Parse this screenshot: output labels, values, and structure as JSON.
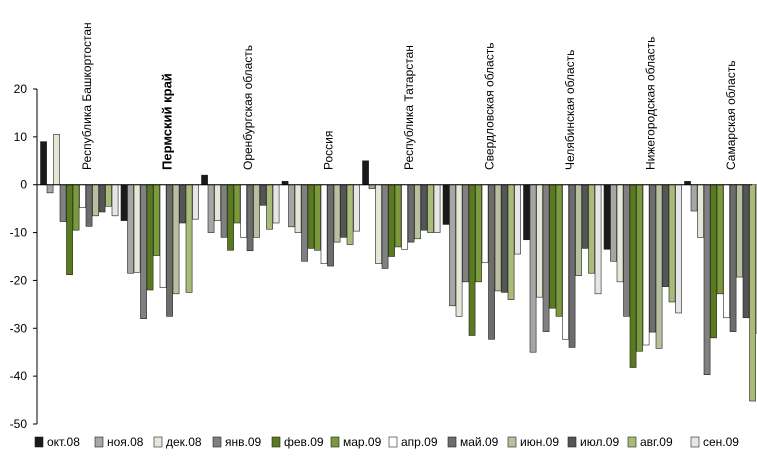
{
  "chart_data": {
    "type": "bar",
    "title": "",
    "xlabel": "",
    "ylabel": "",
    "ylim": [
      -50,
      20
    ],
    "yticks": [
      20,
      10,
      0,
      -10,
      -20,
      -30,
      -40,
      -50
    ],
    "grid": false,
    "legend_position": "bottom",
    "categories": [
      "Республика Башкортостан",
      "Пермский край",
      "Оренбургская область",
      "Россия",
      "Республика Татарстан",
      "Свердловская область",
      "Челябинская область",
      "Нижегородская область",
      "Самарская область"
    ],
    "highlight_category": "Пермский край",
    "series": [
      {
        "name": "окт.08",
        "color": "#1a1a1a",
        "values": [
          9,
          -7.5,
          2,
          0.7,
          5,
          -8.3,
          -11.5,
          -13.5,
          0.7
        ]
      },
      {
        "name": "ноя.08",
        "color": "#a6a6a6",
        "values": [
          -1.7,
          -18.5,
          -10,
          -8.8,
          -0.8,
          -25.3,
          -35,
          -16,
          -5.5
        ]
      },
      {
        "name": "дек.08",
        "color": "#e4e8d6",
        "values": [
          10.5,
          -18.3,
          -7.5,
          -10,
          -16.5,
          -27.5,
          -23.5,
          -20.3,
          -11
        ]
      },
      {
        "name": "янв.09",
        "color": "#808080",
        "values": [
          -7.7,
          -28,
          -11,
          -16,
          -17.5,
          -20.3,
          -30.7,
          -27.5,
          -39.7
        ]
      },
      {
        "name": "фев.09",
        "color": "#5a7a1f",
        "values": [
          -18.8,
          -22,
          -13.7,
          -13.3,
          -15,
          -31.5,
          -25.8,
          -38.2,
          -32
        ]
      },
      {
        "name": "мар.09",
        "color": "#7b9a3b",
        "values": [
          -9.5,
          -14.8,
          -8,
          -13.7,
          -13,
          -20.3,
          -27.5,
          -34.8,
          -22.8
        ]
      },
      {
        "name": "апр.09",
        "color": "#ffffff",
        "values": [
          -4.8,
          -21.5,
          -11,
          -16.5,
          -13.5,
          -16.3,
          -32.3,
          -33.5,
          -27.8
        ]
      },
      {
        "name": "май.09",
        "color": "#6d6d6d",
        "values": [
          -8.7,
          -27.5,
          -13.8,
          -17,
          -12,
          -32.3,
          -34,
          -30.8,
          -30.7
        ]
      },
      {
        "name": "июн.09",
        "color": "#b8c0a0",
        "values": [
          -6.5,
          -22.8,
          -11,
          -12,
          -11.3,
          -22.2,
          -19,
          -34.2,
          -19.3
        ]
      },
      {
        "name": "июл.09",
        "color": "#555555",
        "values": [
          -5.7,
          -8,
          -4.3,
          -11,
          -9.5,
          -22.5,
          -13.3,
          -21.3,
          -27.8
        ]
      },
      {
        "name": "авг.09",
        "color": "#a8bc78",
        "values": [
          -4.5,
          -22.5,
          -9.3,
          -12.5,
          -10,
          -24,
          -18.5,
          -24.5,
          -45.2
        ]
      },
      {
        "name": "сен.09",
        "color": "#e6e6e6",
        "values": [
          -6.5,
          -7.2,
          -8,
          -9.7,
          -10,
          -14.5,
          -22.8,
          -26.8,
          -31
        ]
      }
    ]
  }
}
